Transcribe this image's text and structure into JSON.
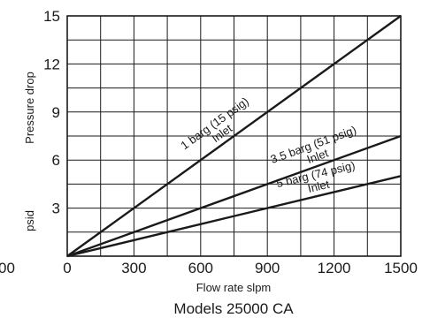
{
  "chart_data": {
    "type": "line",
    "caption": "Models 25000 CA",
    "xlabel": "Flow rate slpm",
    "ylabel": "Pressure drop",
    "yunit": "psid",
    "xlim": [
      0,
      1500
    ],
    "ylim": [
      0,
      15
    ],
    "grid": true,
    "x_grid_step": 150,
    "y_grid_step": 1.5,
    "x_ticks": [
      0,
      300,
      600,
      900,
      1200,
      1500
    ],
    "y_ticks": [
      3,
      6,
      9,
      12,
      15
    ],
    "clipped_x_tick_label": "00",
    "series": [
      {
        "name": "1 barg (15 psig)",
        "sublabel": "Inlet",
        "x": [
          0,
          1500
        ],
        "y": [
          0,
          15
        ],
        "label_at": 720
      },
      {
        "name": "3.5 barg (51 psig)",
        "sublabel": "Inlet",
        "x": [
          0,
          1500
        ],
        "y": [
          0,
          7.5
        ],
        "label_at": 1140
      },
      {
        "name": "5 barg (74 psig)",
        "sublabel": "Inlet",
        "x": [
          0,
          1500
        ],
        "y": [
          0,
          5
        ],
        "label_at": 1140
      }
    ]
  }
}
